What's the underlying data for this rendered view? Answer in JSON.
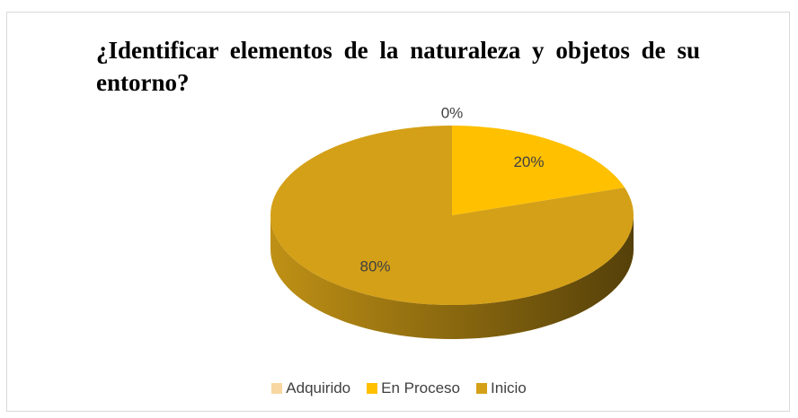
{
  "chart_data": {
    "type": "pie3d",
    "title": "¿Identificar elementos de la naturaleza y objetos de su entorno?",
    "categories": [
      "Adquirido",
      "En Proceso",
      "Inicio"
    ],
    "values": [
      0,
      20,
      80
    ],
    "value_labels": [
      "0%",
      "20%",
      "80%"
    ],
    "colors": [
      "#f8d7a0",
      "#ffc000",
      "#d4a017"
    ],
    "legend": "bottom"
  }
}
